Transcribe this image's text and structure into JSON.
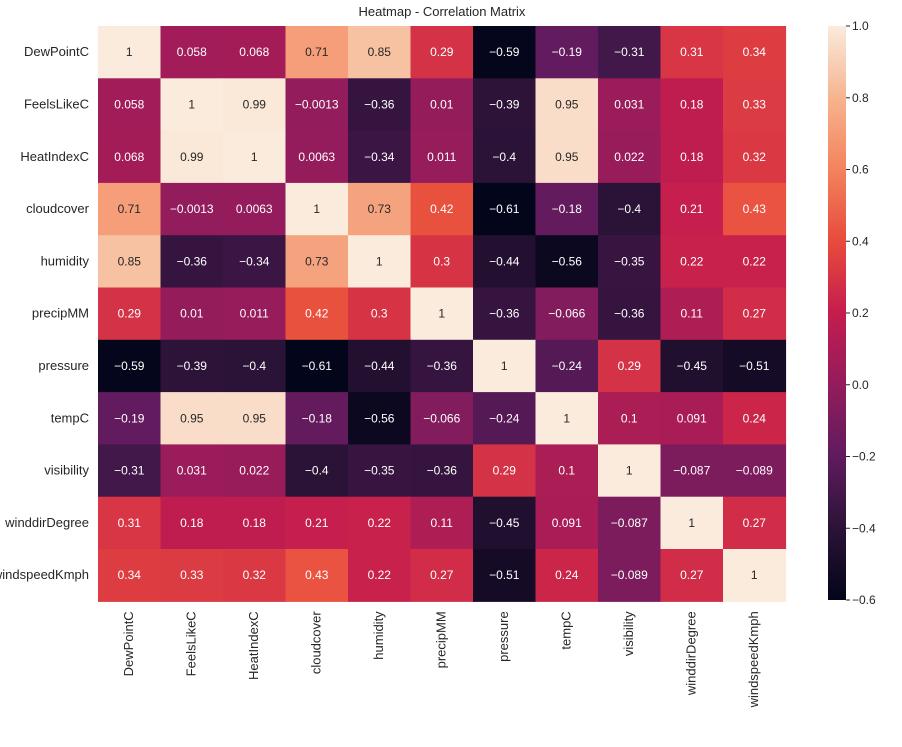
{
  "chart_data": {
    "type": "heatmap",
    "title": "Heatmap - Correlation Matrix",
    "labels": [
      "DewPointC",
      "FeelsLikeC",
      "HeatIndexC",
      "cloudcover",
      "humidity",
      "precipMM",
      "pressure",
      "tempC",
      "visibility",
      "winddirDegree",
      "windspeedKmph"
    ],
    "values": [
      [
        1,
        0.058,
        0.068,
        0.71,
        0.85,
        0.29,
        -0.59,
        -0.19,
        -0.31,
        0.31,
        0.34
      ],
      [
        0.058,
        1,
        0.99,
        -0.0013,
        -0.36,
        0.01,
        -0.39,
        0.95,
        0.031,
        0.18,
        0.33
      ],
      [
        0.068,
        0.99,
        1,
        0.0063,
        -0.34,
        0.011,
        -0.4,
        0.95,
        0.022,
        0.18,
        0.32
      ],
      [
        0.71,
        -0.0013,
        0.0063,
        1,
        0.73,
        0.42,
        -0.61,
        -0.18,
        -0.4,
        0.21,
        0.43
      ],
      [
        0.85,
        -0.36,
        -0.34,
        0.73,
        1,
        0.3,
        -0.44,
        -0.56,
        -0.35,
        0.22,
        0.22
      ],
      [
        0.29,
        0.01,
        0.011,
        0.42,
        0.3,
        1,
        -0.36,
        -0.066,
        -0.36,
        0.11,
        0.27
      ],
      [
        -0.59,
        -0.39,
        -0.4,
        -0.61,
        -0.44,
        -0.36,
        1,
        -0.24,
        0.29,
        -0.45,
        -0.51
      ],
      [
        -0.19,
        0.95,
        0.95,
        -0.18,
        -0.56,
        -0.066,
        -0.24,
        1,
        0.1,
        0.091,
        0.24
      ],
      [
        -0.31,
        0.031,
        0.022,
        -0.4,
        -0.35,
        -0.36,
        0.29,
        0.1,
        1,
        -0.087,
        -0.089
      ],
      [
        0.31,
        0.18,
        0.18,
        0.21,
        0.22,
        0.11,
        -0.45,
        0.091,
        -0.087,
        1,
        0.27
      ],
      [
        0.34,
        0.33,
        0.32,
        0.43,
        0.22,
        0.27,
        -0.51,
        0.24,
        -0.089,
        0.27,
        1
      ]
    ],
    "value_range": [
      -0.6,
      1.0
    ],
    "colorbar_ticks": [
      "1.0",
      "0.8",
      "0.6",
      "0.4",
      "0.2",
      "0.0",
      "−0.2",
      "−0.4",
      "−0.6"
    ],
    "colormap": "rocket",
    "colormap_stops": [
      "#03051a",
      "#2b1337",
      "#5f1b5e",
      "#931c5c",
      "#c41d4e",
      "#e84b3c",
      "#f3835d",
      "#f6b48f",
      "#faebdd"
    ],
    "annotations_shown": true,
    "grid": false
  }
}
